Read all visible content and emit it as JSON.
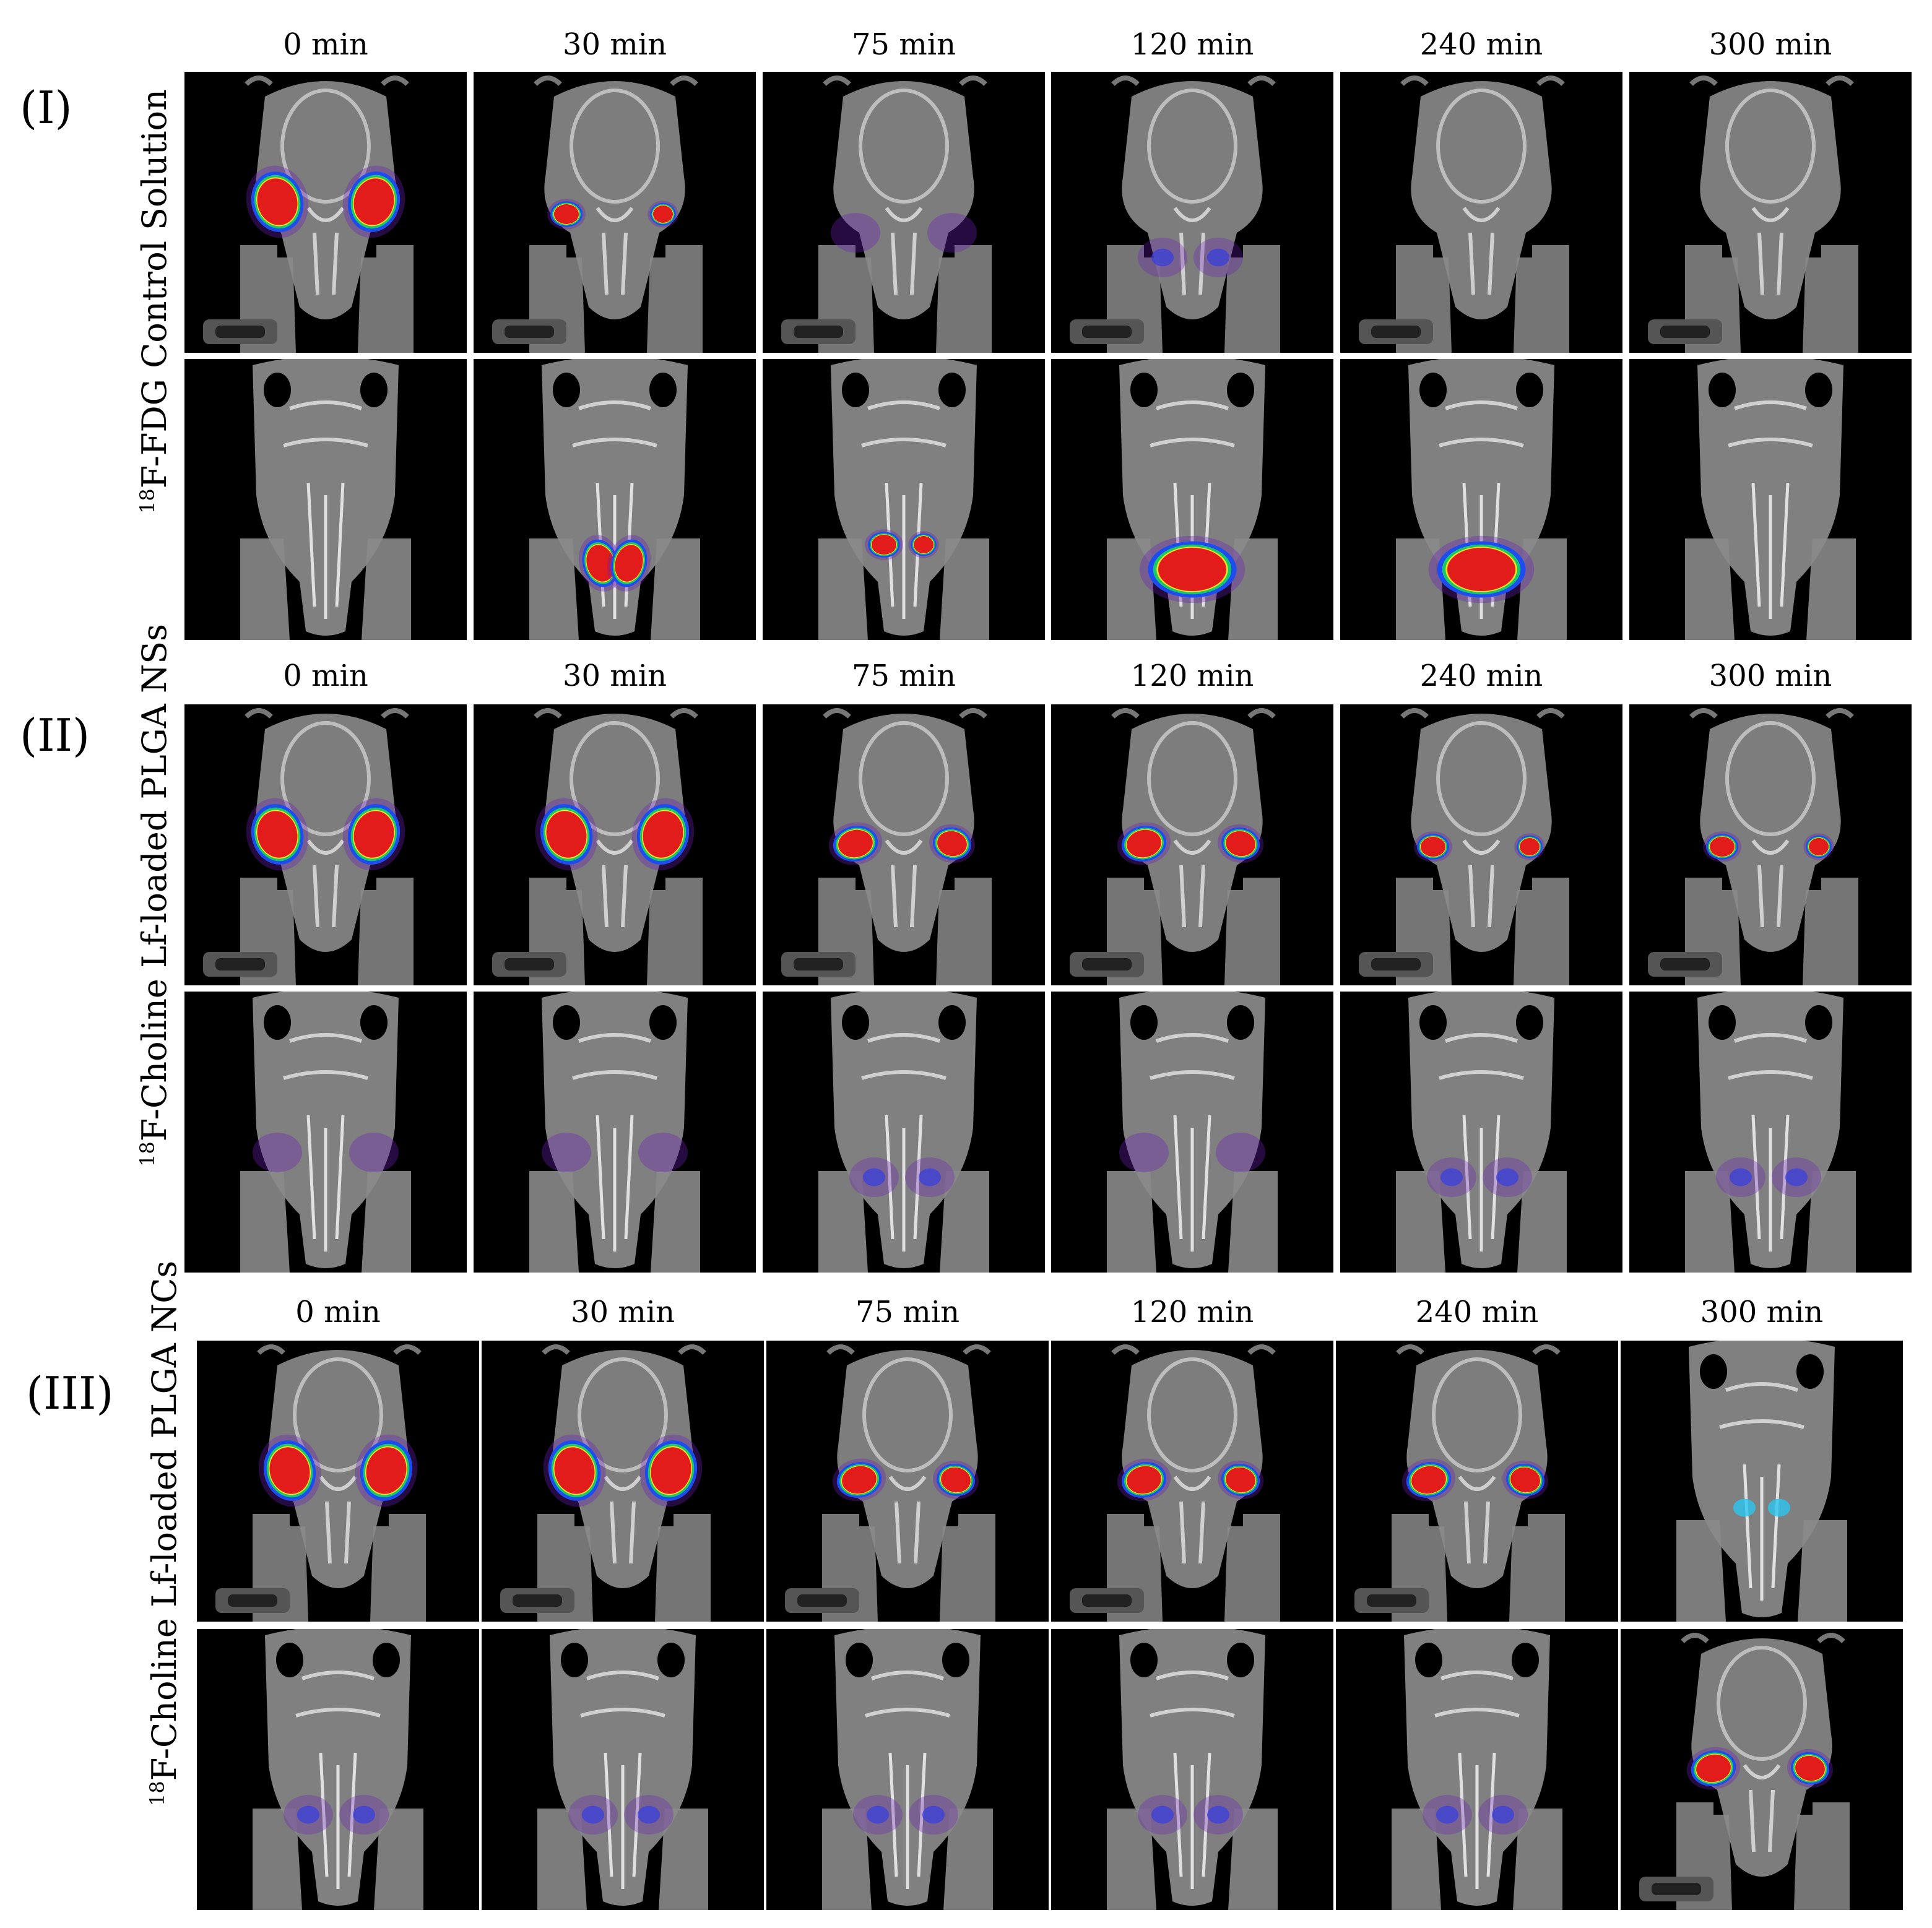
{
  "sections": [
    {
      "id": "I",
      "label": "(I)",
      "side_label_sup": "18",
      "side_label_text": "F-FDG Control Solution",
      "time_labels": [
        "0 min",
        "30 min",
        "75 min",
        "120 min",
        "240 min",
        "300 min"
      ]
    },
    {
      "id": "II",
      "label": "(II)",
      "side_label_sup": "18",
      "side_label_text": "F-Choline Lf-loaded PLGA NSs",
      "time_labels": [
        "0 min",
        "30 min",
        "75 min",
        "120 min",
        "240 min",
        "300 min"
      ]
    },
    {
      "id": "III",
      "label": "(III)",
      "side_label_sup": "18",
      "side_label_text": "F-Choline Lf-loaded PLGA NCs",
      "time_labels": [
        "0 min",
        "30 min",
        "75 min",
        "120 min",
        "240 min",
        "300 min"
      ]
    }
  ],
  "colors": {
    "hot_red": "#e21b1b",
    "hot_yellow": "#f4e11a",
    "hot_green": "#17c86a",
    "hot_blue": "#1d4cf0",
    "hot_purple": "#6a1fb8",
    "ct_gray": "#8a8a8a",
    "background": "#000000"
  },
  "panels": {
    "I": {
      "top": [
        "hot-lateral-large",
        "hot-lateral-small",
        "faint",
        "faint-blue",
        "none",
        "none"
      ],
      "bottom": [
        "none",
        "hot-midline",
        "hot-midline-small",
        "hot-midline-merged",
        "hot-midline-merged",
        "none"
      ]
    },
    "II": {
      "top": [
        "hot-lateral-large",
        "hot-lateral-large",
        "hot-lateral-medium",
        "hot-lateral-medium",
        "hot-lateral-small",
        "hot-lateral-small"
      ],
      "bottom": [
        "faint",
        "faint",
        "faint-blue",
        "faint",
        "faint-blue",
        "faint-blue"
      ]
    },
    "III": {
      "top": [
        "hot-lateral-large",
        "hot-lateral-large",
        "hot-lateral-medium",
        "hot-lateral-medium",
        "hot-lateral-medium",
        "faint-blue-skull"
      ],
      "bottom": [
        "faint-blue",
        "faint-blue",
        "faint-blue",
        "faint-blue",
        "faint-blue",
        "hot-lateral-medium"
      ]
    }
  }
}
